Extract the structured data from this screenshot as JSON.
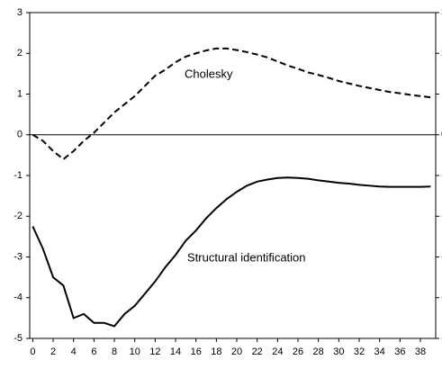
{
  "chart_data": {
    "type": "line",
    "x": [
      0,
      1,
      2,
      3,
      4,
      5,
      6,
      7,
      8,
      9,
      10,
      11,
      12,
      13,
      14,
      15,
      16,
      17,
      18,
      19,
      20,
      21,
      22,
      23,
      24,
      25,
      26,
      27,
      28,
      29,
      30,
      31,
      32,
      33,
      34,
      35,
      36,
      37,
      38,
      39
    ],
    "series": [
      {
        "name": "Cholesky",
        "color": "#000000",
        "dash": true,
        "values": [
          0,
          -0.15,
          -0.4,
          -0.6,
          -0.4,
          -0.15,
          0.05,
          0.3,
          0.55,
          0.75,
          0.95,
          1.2,
          1.45,
          1.6,
          1.78,
          1.92,
          2.0,
          2.07,
          2.12,
          2.12,
          2.08,
          2.03,
          1.97,
          1.9,
          1.8,
          1.7,
          1.62,
          1.53,
          1.47,
          1.4,
          1.32,
          1.26,
          1.2,
          1.15,
          1.1,
          1.05,
          1.02,
          0.98,
          0.95,
          0.92
        ]
      },
      {
        "name": "Structural identification",
        "color": "#000000",
        "dash": false,
        "values": [
          -2.25,
          -2.8,
          -3.5,
          -3.7,
          -4.5,
          -4.4,
          -4.62,
          -4.62,
          -4.7,
          -4.4,
          -4.2,
          -3.9,
          -3.6,
          -3.25,
          -2.95,
          -2.6,
          -2.35,
          -2.05,
          -1.8,
          -1.58,
          -1.4,
          -1.25,
          -1.15,
          -1.1,
          -1.06,
          -1.05,
          -1.06,
          -1.08,
          -1.12,
          -1.15,
          -1.18,
          -1.2,
          -1.23,
          -1.25,
          -1.27,
          -1.28,
          -1.28,
          -1.28,
          -1.28,
          -1.27
        ]
      }
    ],
    "xlim": [
      -0.3,
      39.5
    ],
    "xticks": [
      0,
      2,
      4,
      6,
      8,
      10,
      12,
      14,
      16,
      18,
      20,
      22,
      24,
      26,
      28,
      30,
      32,
      34,
      36,
      38
    ],
    "ylim": [
      -5,
      3
    ],
    "yticks": [
      -5,
      -4,
      -3,
      -2,
      -1,
      0,
      1,
      2,
      3
    ],
    "y2lim": [
      -5,
      3
    ],
    "y2ticks": [
      -5,
      -4,
      -3,
      -2,
      -1,
      0,
      1,
      2,
      3
    ],
    "zero_line": true
  }
}
